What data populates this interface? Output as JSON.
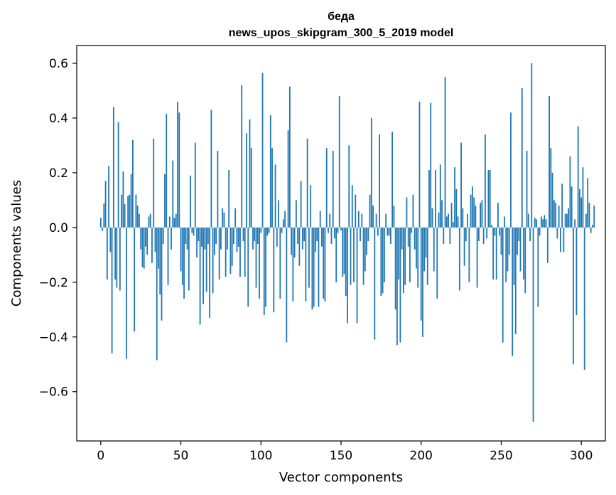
{
  "chart_data": {
    "type": "bar",
    "title": "беда",
    "subtitle": "news_upos_skipgram_300_5_2019 model",
    "xlabel": "Vector components",
    "ylabel": "Components values",
    "xlim": [
      -15,
      315
    ],
    "ylim": [
      -0.78,
      0.665
    ],
    "xticks": [
      0,
      50,
      100,
      150,
      200,
      250,
      300
    ],
    "xtick_labels": [
      "0",
      "50",
      "100",
      "150",
      "200",
      "250",
      "300"
    ],
    "yticks": [
      -0.6,
      -0.4,
      -0.2,
      0.0,
      0.2,
      0.4,
      0.6
    ],
    "ytick_labels": [
      "−0.6",
      "−0.4",
      "−0.2",
      "0.0",
      "0.2",
      "0.4",
      "0.6"
    ],
    "grid": false,
    "bar_color": "#1f77b4",
    "x_start": 0,
    "values": [
      0.035,
      -0.012,
      0.088,
      0.17,
      -0.19,
      0.225,
      -0.09,
      -0.46,
      0.44,
      -0.19,
      -0.22,
      0.385,
      -0.23,
      0.12,
      0.205,
      0.085,
      -0.48,
      0.115,
      0.12,
      0.195,
      0.32,
      -0.38,
      0.12,
      0.08,
      0.05,
      -0.08,
      -0.145,
      -0.15,
      -0.07,
      -0.1,
      0.04,
      0.05,
      -0.13,
      0.325,
      -0.09,
      -0.485,
      -0.15,
      -0.245,
      -0.34,
      -0.06,
      0.195,
      0.415,
      -0.21,
      0.04,
      -0.08,
      0.245,
      0.035,
      0.05,
      0.46,
      0.42,
      -0.16,
      -0.21,
      -0.26,
      -0.06,
      -0.08,
      -0.23,
      0.19,
      -0.02,
      -0.03,
      0.31,
      -0.11,
      -0.05,
      -0.355,
      -0.07,
      -0.28,
      -0.08,
      -0.235,
      -0.06,
      -0.33,
      0.43,
      -0.24,
      -0.1,
      -0.06,
      0.28,
      -0.19,
      -0.08,
      0.07,
      0.055,
      -0.18,
      -0.08,
      0.21,
      -0.17,
      -0.14,
      -0.06,
      0.07,
      -0.09,
      -0.07,
      -0.18,
      0.52,
      -0.05,
      -0.18,
      0.345,
      -0.29,
      0.395,
      0.29,
      -0.08,
      -0.05,
      -0.22,
      -0.06,
      -0.26,
      -0.02,
      0.565,
      -0.32,
      -0.29,
      -0.03,
      -0.02,
      0.41,
      0.29,
      -0.31,
      0.23,
      -0.07,
      0.1,
      -0.26,
      -0.02,
      0.03,
      0.06,
      -0.42,
      0.355,
      0.515,
      -0.1,
      -0.27,
      -0.11,
      0.1,
      -0.06,
      -0.14,
      0.17,
      -0.08,
      -0.05,
      -0.27,
      0.325,
      -0.22,
      0.155,
      -0.3,
      -0.29,
      -0.09,
      -0.05,
      -0.29,
      0.06,
      -0.07,
      -0.26,
      -0.27,
      0.29,
      -0.02,
      0.05,
      -0.06,
      0.28,
      -0.04,
      -0.2,
      -0.02,
      0.48,
      -0.01,
      -0.18,
      -0.17,
      -0.25,
      -0.35,
      0.3,
      -0.21,
      0.155,
      -0.2,
      0.12,
      -0.35,
      0.06,
      -0.05,
      0.05,
      -0.21,
      -0.16,
      -0.1,
      -0.05,
      0.12,
      0.4,
      0.08,
      -0.41,
      0.05,
      -0.03,
      0.34,
      -0.25,
      -0.24,
      -0.2,
      0.05,
      -0.03,
      -0.03,
      -0.06,
      0.35,
      0.08,
      -0.3,
      -0.43,
      -0.19,
      -0.42,
      -0.08,
      -0.24,
      -0.21,
      0.11,
      -0.07,
      -0.2,
      -0.02,
      0.12,
      -0.08,
      -0.15,
      -0.22,
      0.46,
      -0.34,
      -0.4,
      -0.16,
      -0.11,
      -0.21,
      0.21,
      0.455,
      0.07,
      -0.16,
      0.21,
      -0.26,
      0.055,
      0.23,
      0.1,
      -0.06,
      0.55,
      0.04,
      0.05,
      -0.06,
      0.09,
      0.02,
      0.22,
      0.14,
      0.04,
      -0.23,
      0.31,
      0.07,
      -0.14,
      -0.05,
      0.05,
      -0.2,
      0.12,
      0.15,
      0.11,
      0.08,
      -0.22,
      -0.05,
      0.09,
      0.1,
      -0.06,
      0.34,
      -0.04,
      0.21,
      0.21,
      0.01,
      -0.19,
      -0.03,
      -0.19,
      0.09,
      -0.03,
      -0.1,
      -0.42,
      0.04,
      -0.2,
      -0.16,
      -0.1,
      0.42,
      -0.47,
      -0.21,
      -0.39,
      -0.1,
      -0.05,
      -0.16,
      0.51,
      -0.19,
      -0.24,
      0.28,
      0.05,
      -0.05,
      0.6,
      -0.71,
      0.035,
      0.03,
      -0.29,
      -0.03,
      0.04,
      0.03,
      0.045,
      0.03,
      -0.13,
      0.48,
      0.29,
      0.2,
      0.1,
      0.09,
      -0.04,
      0.08,
      -0.09,
      0.16,
      -0.09,
      0.05,
      0.05,
      0.07,
      0.26,
      0.15,
      -0.5,
      0.03,
      -0.32,
      0.37,
      0.14,
      0.11,
      0.22,
      -0.52,
      0.05,
      0.18,
      0.09,
      -0.02,
      0.01,
      0.08
    ]
  }
}
